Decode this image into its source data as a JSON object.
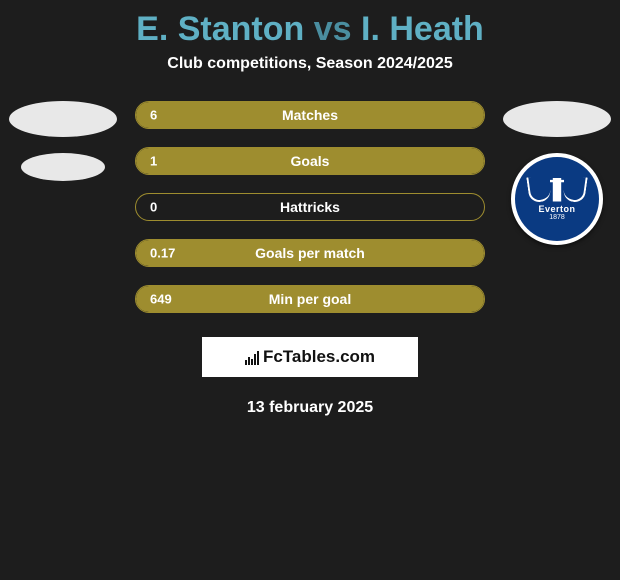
{
  "title": {
    "player1": "E. Stanton",
    "vs": "vs",
    "player2": "I. Heath"
  },
  "subtitle": "Club competitions, Season 2024/2025",
  "bars": {
    "fill_color": "#9e8d2f",
    "border_color": "#9e8d2f",
    "text_color": "#ffffff",
    "items": [
      {
        "label": "Matches",
        "value": "6",
        "fill_pct": 100
      },
      {
        "label": "Goals",
        "value": "1",
        "fill_pct": 100
      },
      {
        "label": "Hattricks",
        "value": "0",
        "fill_pct": 0
      },
      {
        "label": "Goals per match",
        "value": "0.17",
        "fill_pct": 100
      },
      {
        "label": "Min per goal",
        "value": "649",
        "fill_pct": 100
      }
    ]
  },
  "side_left": {
    "ovals": 2
  },
  "side_right": {
    "ovals": 1,
    "badge": {
      "name": "Everton",
      "year": "1878",
      "bg_color": "#0a3a82"
    }
  },
  "brand": "FcTables.com",
  "date": "13 february 2025"
}
